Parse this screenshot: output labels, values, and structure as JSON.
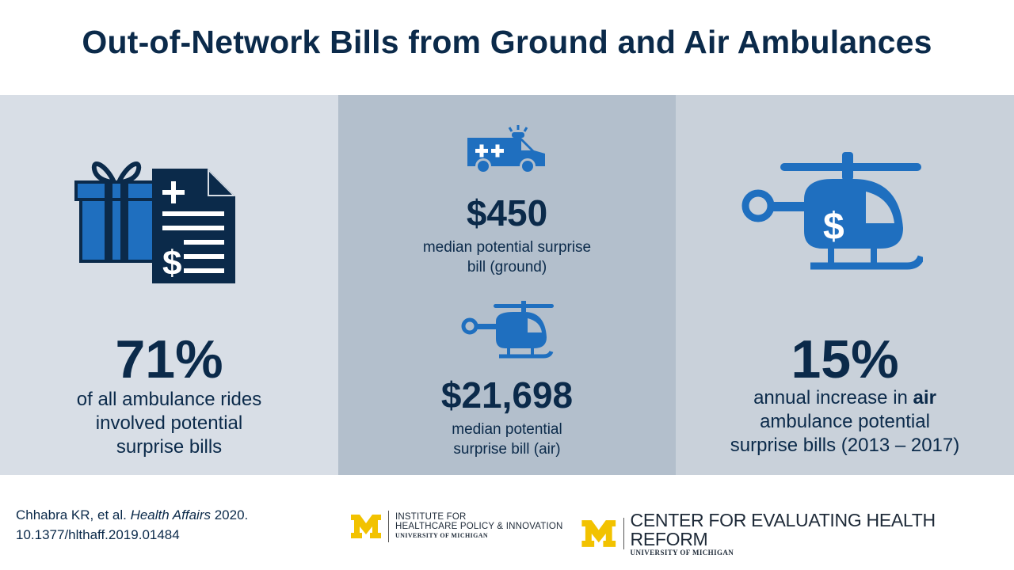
{
  "title": "Out-of-Network Bills from Ground and Air Ambulances",
  "left": {
    "stat": "71%",
    "line1": "of all ambulance rides",
    "line2": "involved potential",
    "line3": "surprise bills"
  },
  "middle": {
    "ground_stat": "$450",
    "ground_line1": "median potential surprise",
    "ground_line2": "bill (ground)",
    "air_stat": "$21,698",
    "air_line1": "median potential",
    "air_line2": "surprise bill (air)"
  },
  "right": {
    "stat": "15%",
    "line1_pre": "annual increase in ",
    "line1_bold": "air",
    "line2": "ambulance potential",
    "line3": "surprise bills (2013 – 2017)"
  },
  "citation": {
    "authors": "Chhabra KR, et al. ",
    "journal": "Health Affairs",
    "year": " 2020.",
    "doi": "10.1377/hlthaff.2019.01484"
  },
  "logos": {
    "ihpi_line1": "INSTITUTE FOR",
    "ihpi_line2": "HEALTHCARE POLICY & INNOVATION",
    "ihpi_line3": "UNIVERSITY OF MICHIGAN",
    "chr_line1": "CENTER FOR EVALUATING HEALTH REFORM",
    "chr_line2": "UNIVERSITY OF MICHIGAN"
  },
  "colors": {
    "navy": "#0b2a4a",
    "icon_blue": "#1f6fbf",
    "maize": "#f2c200"
  },
  "icons": [
    "gift-bill-icon",
    "ambulance-icon",
    "helicopter-icon"
  ]
}
